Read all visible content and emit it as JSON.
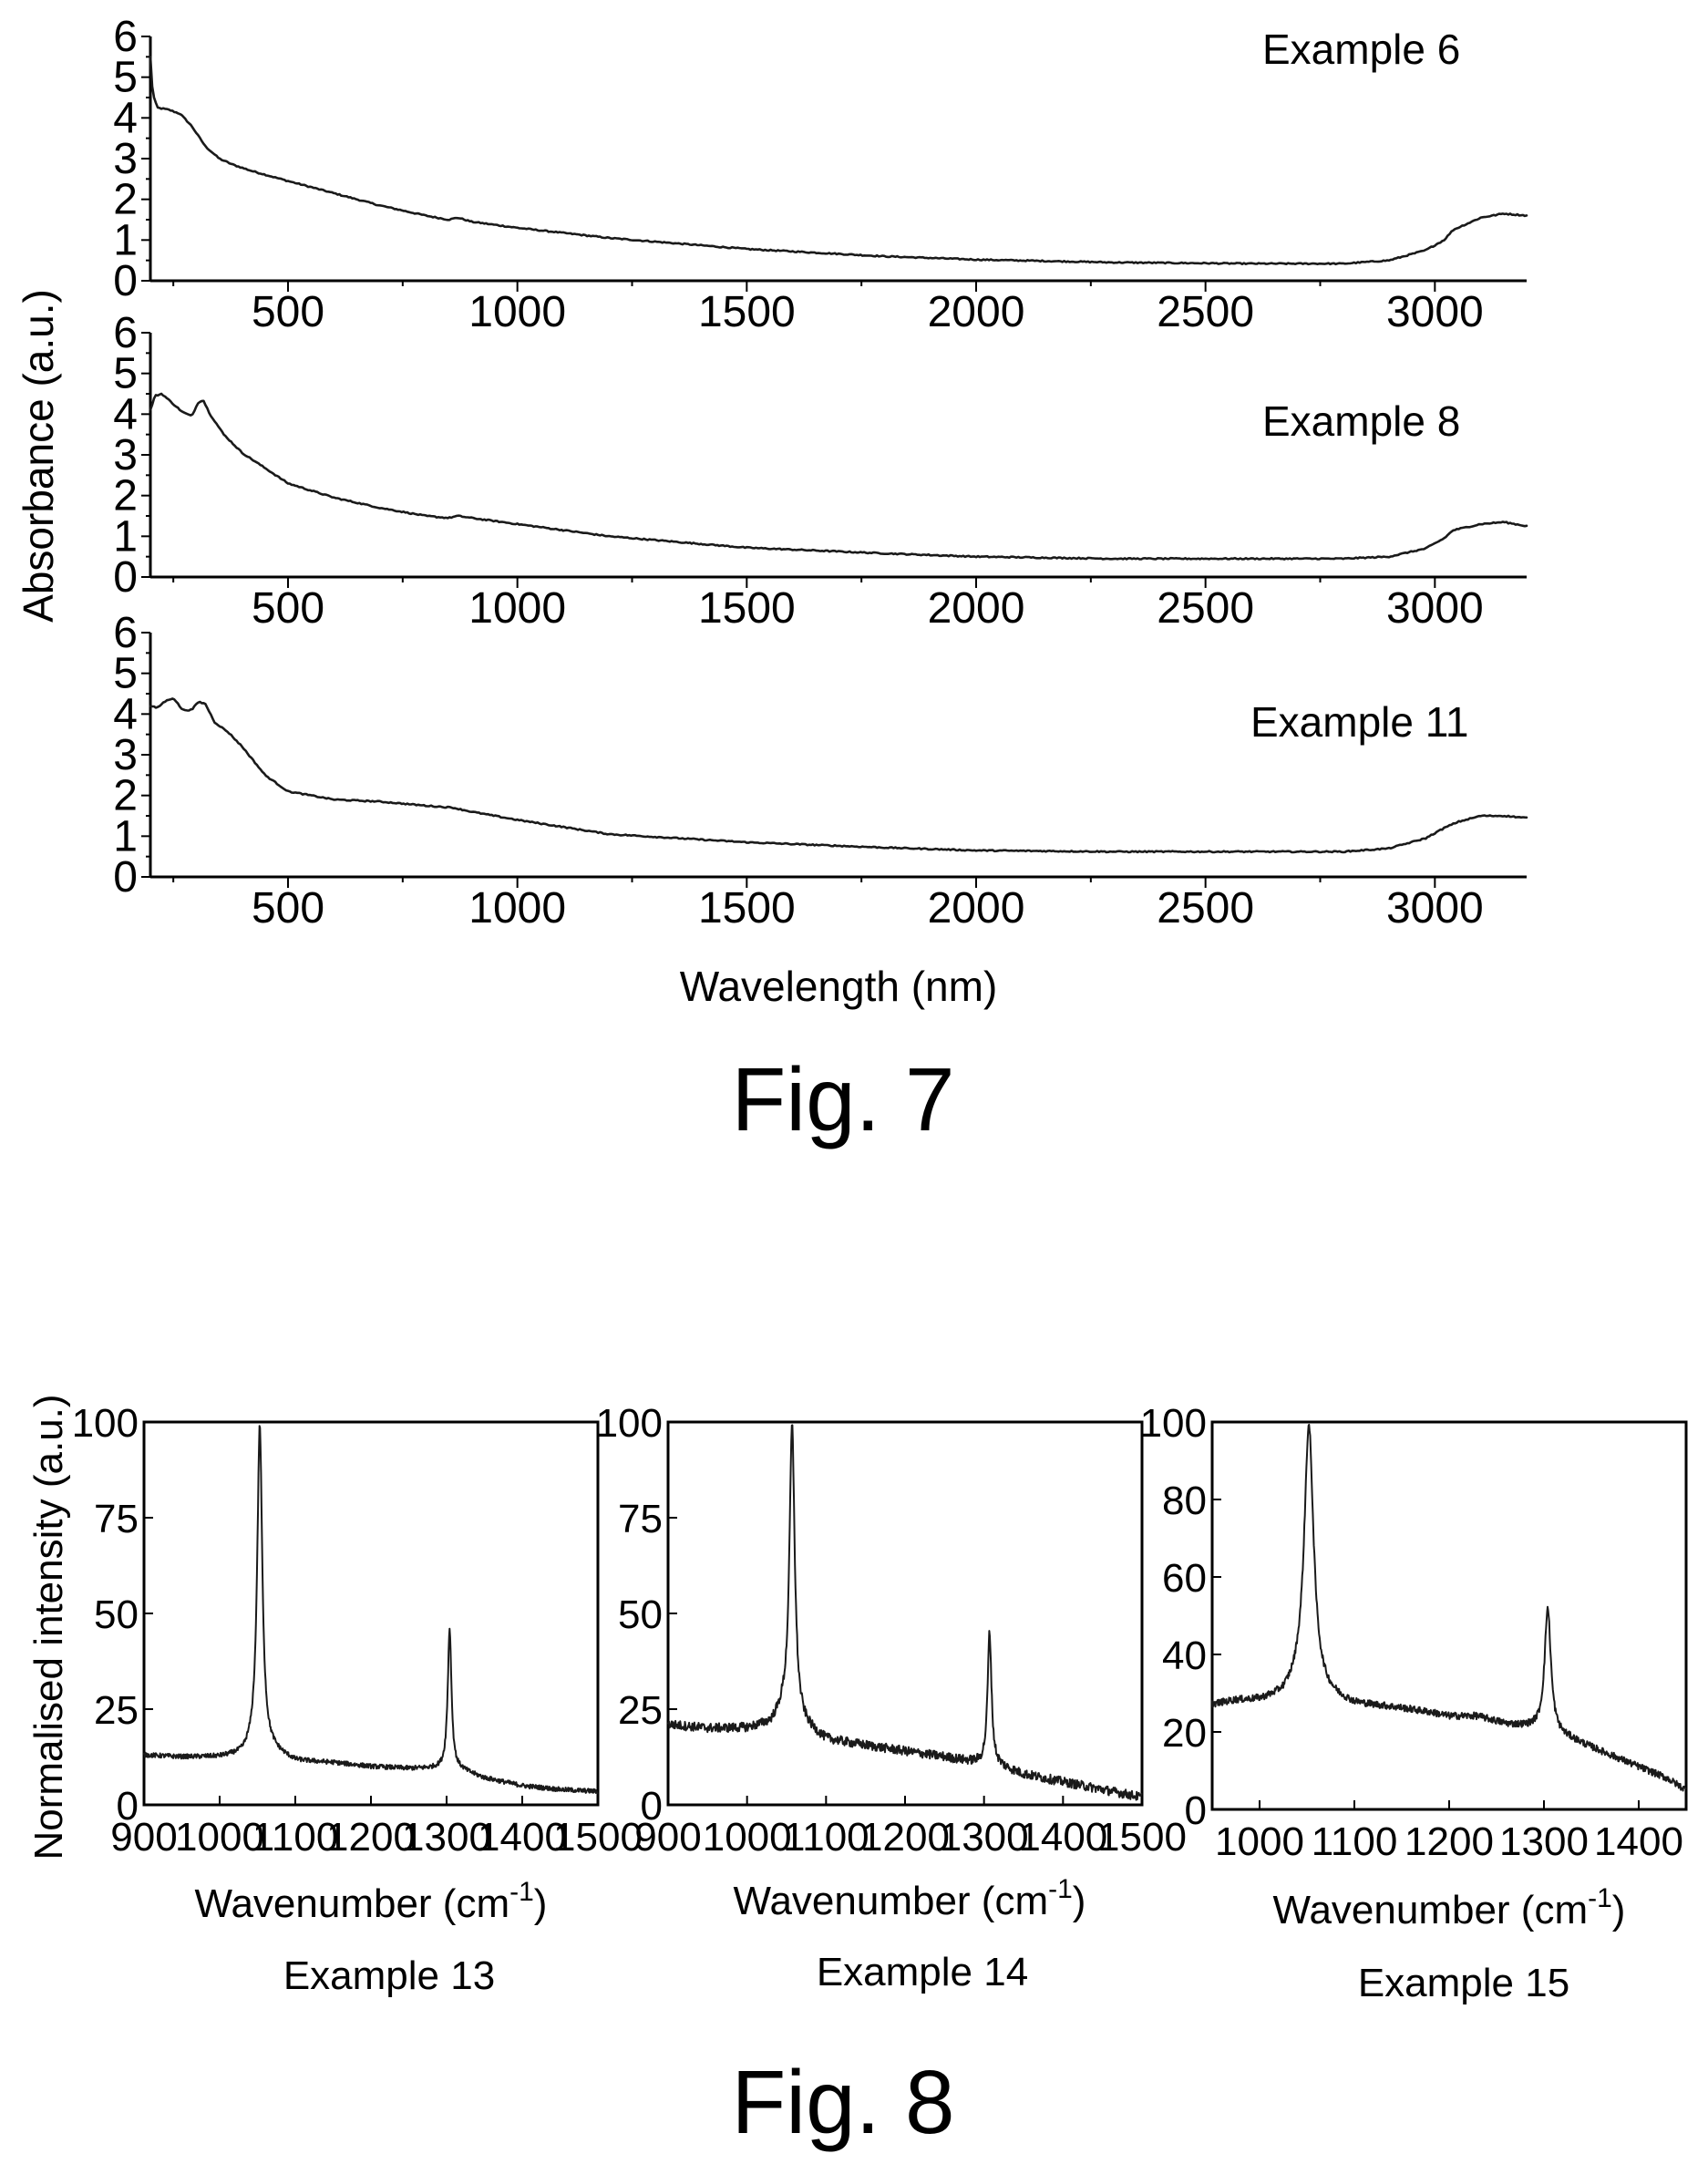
{
  "figure7": {
    "caption": "Fig. 7",
    "ylabel": "Absorbance (a.u.)",
    "xlabel": "Wavelength (nm)",
    "chart_data": [
      {
        "type": "line",
        "annotation": "Example 6",
        "xlim": [
          200,
          3200
        ],
        "ylim": [
          0,
          6
        ],
        "xticks": [
          "500",
          "1000",
          "1500",
          "2000",
          "2500",
          "3000"
        ],
        "yticks": [
          "0",
          "1",
          "2",
          "3",
          "4",
          "5",
          "6"
        ],
        "x": [
          200,
          205,
          215,
          240,
          265,
          290,
          320,
          350,
          380,
          420,
          500,
          600,
          700,
          800,
          850,
          870,
          900,
          1000,
          1200,
          1500,
          1800,
          2000,
          2300,
          2600,
          2800,
          2900,
          2980,
          3020,
          3040,
          3060,
          3100,
          3150,
          3200
        ],
        "y": [
          5.5,
          4.6,
          4.25,
          4.2,
          4.1,
          3.8,
          3.3,
          3.0,
          2.85,
          2.7,
          2.45,
          2.15,
          1.85,
          1.6,
          1.5,
          1.55,
          1.45,
          1.3,
          1.05,
          0.78,
          0.6,
          0.52,
          0.45,
          0.42,
          0.42,
          0.5,
          0.75,
          1.0,
          1.25,
          1.35,
          1.55,
          1.65,
          1.6
        ]
      },
      {
        "type": "line",
        "annotation": "Example 8",
        "xlim": [
          200,
          3200
        ],
        "ylim": [
          0,
          6
        ],
        "xticks": [
          "500",
          "1000",
          "1500",
          "2000",
          "2500",
          "3000"
        ],
        "yticks": [
          "0",
          "1",
          "2",
          "3",
          "4",
          "5",
          "6"
        ],
        "x": [
          200,
          210,
          225,
          250,
          270,
          290,
          305,
          315,
          330,
          360,
          400,
          500,
          600,
          700,
          800,
          850,
          870,
          900,
          1000,
          1200,
          1500,
          1800,
          2000,
          2300,
          2600,
          2800,
          2900,
          2980,
          3020,
          3040,
          3060,
          3100,
          3150,
          3200
        ],
        "y": [
          4.1,
          4.45,
          4.5,
          4.25,
          4.05,
          3.95,
          4.3,
          4.35,
          4.0,
          3.5,
          3.05,
          2.3,
          1.95,
          1.7,
          1.5,
          1.45,
          1.5,
          1.45,
          1.3,
          1.0,
          0.72,
          0.58,
          0.5,
          0.45,
          0.45,
          0.45,
          0.5,
          0.7,
          0.95,
          1.15,
          1.2,
          1.3,
          1.35,
          1.25
        ]
      },
      {
        "type": "line",
        "annotation": "Example 11",
        "xlim": [
          200,
          3200
        ],
        "ylim": [
          0,
          6
        ],
        "xticks": [
          "500",
          "1000",
          "1500",
          "2000",
          "2500",
          "3000"
        ],
        "yticks": [
          "0",
          "1",
          "2",
          "3",
          "4",
          "5",
          "6"
        ],
        "x": [
          200,
          215,
          230,
          250,
          270,
          290,
          305,
          320,
          340,
          370,
          400,
          450,
          500,
          600,
          700,
          800,
          860,
          900,
          1000,
          1200,
          1500,
          1800,
          2000,
          2300,
          2600,
          2800,
          2900,
          2980,
          3020,
          3050,
          3100,
          3150,
          3200
        ],
        "y": [
          4.2,
          4.15,
          4.3,
          4.4,
          4.1,
          4.1,
          4.3,
          4.25,
          3.8,
          3.55,
          3.2,
          2.5,
          2.1,
          1.9,
          1.85,
          1.75,
          1.7,
          1.6,
          1.4,
          1.05,
          0.85,
          0.72,
          0.65,
          0.62,
          0.62,
          0.62,
          0.7,
          0.95,
          1.2,
          1.35,
          1.5,
          1.5,
          1.45
        ]
      }
    ]
  },
  "figure8": {
    "caption": "Fig. 8",
    "ylabel": "Normalised intensity (a.u.)",
    "xlabel_main": "Wavenumber (cm",
    "xlabel_sup": "-1",
    "xlabel_close": ")",
    "chart_data": [
      {
        "type": "line",
        "caption": "Example 13",
        "xlim": [
          900,
          1500
        ],
        "ylim": [
          0,
          100
        ],
        "xticks": [
          "900",
          "1000",
          "1100",
          "1200",
          "1300",
          "1400",
          "1500"
        ],
        "yticks": [
          "0",
          "25",
          "50",
          "75",
          "100"
        ],
        "baseline": {
          "x": [
            900,
            950,
            1000,
            1030,
            1045,
            1070,
            1100,
            1150,
            1200,
            1250,
            1285,
            1320,
            1350,
            1400,
            1450,
            1500
          ],
          "y": [
            13,
            12.5,
            12.5,
            13,
            15,
            14,
            11.5,
            11,
            10,
            9.5,
            9.5,
            9,
            7,
            5,
            4,
            3.5
          ]
        },
        "peaks": [
          {
            "x": 1053,
            "height": 99,
            "width": 4
          },
          {
            "x": 1304,
            "height": 46,
            "width": 3
          }
        ],
        "noise": 0.6
      },
      {
        "type": "line",
        "caption": "Example 14",
        "xlim": [
          900,
          1500
        ],
        "ylim": [
          0,
          100
        ],
        "xticks": [
          "900",
          "1000",
          "1100",
          "1200",
          "1300",
          "1400",
          "1500"
        ],
        "yticks": [
          "0",
          "25",
          "50",
          "75",
          "100"
        ],
        "baseline": {
          "x": [
            900,
            950,
            1000,
            1030,
            1045,
            1075,
            1100,
            1150,
            1200,
            1250,
            1290,
            1320,
            1350,
            1400,
            1450,
            1500
          ],
          "y": [
            21,
            20,
            20,
            21,
            24,
            20,
            17,
            15.5,
            14,
            12.5,
            11,
            10,
            8,
            6,
            4,
            2
          ]
        },
        "peaks": [
          {
            "x": 1057,
            "height": 99,
            "width": 4
          },
          {
            "x": 1307,
            "height": 45,
            "width": 3
          }
        ],
        "noise": 1.2
      },
      {
        "type": "line",
        "caption": "Example 15",
        "xlim": [
          950,
          1450
        ],
        "ylim": [
          0,
          100
        ],
        "xticks": [
          "1000",
          "1100",
          "1200",
          "1300",
          "1400"
        ],
        "yticks": [
          "0",
          "20",
          "40",
          "60",
          "80",
          "100"
        ],
        "baseline": {
          "x": [
            950,
            975,
            1000,
            1025,
            1040,
            1070,
            1100,
            1130,
            1150,
            1180,
            1200,
            1230,
            1260,
            1290,
            1330,
            1360,
            1380,
            1400,
            1430,
            1450
          ],
          "y": [
            27,
            28,
            28,
            29,
            31,
            29,
            27,
            26.5,
            26,
            25,
            24,
            24,
            22,
            21,
            18,
            15,
            13,
            11,
            8,
            5
          ]
        },
        "peaks": [
          {
            "x": 1052,
            "height": 99,
            "width": 6
          },
          {
            "x": 1304,
            "height": 52,
            "width": 4
          }
        ],
        "noise": 0.9
      }
    ]
  }
}
